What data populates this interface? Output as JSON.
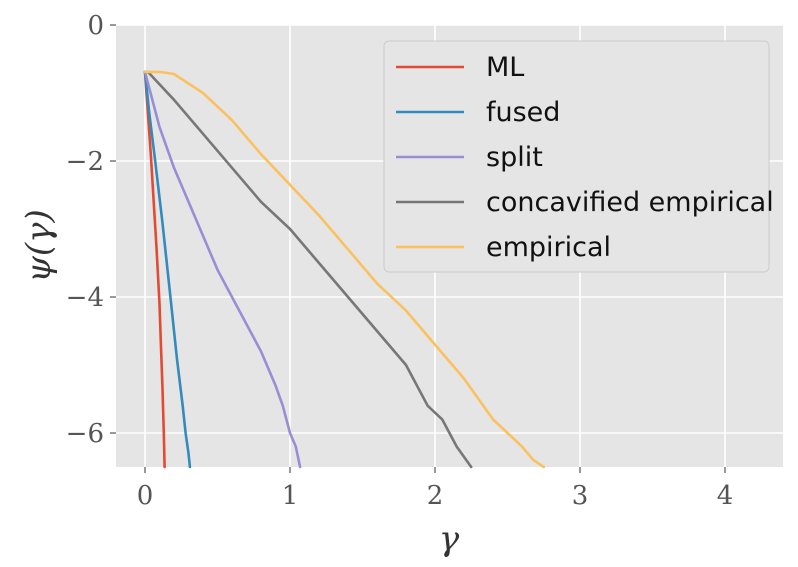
{
  "chart_data": {
    "type": "line",
    "xlabel": "γ",
    "ylabel": "ψ(γ)",
    "xlim": [
      -0.2,
      4.4
    ],
    "ylim": [
      -6.5,
      0
    ],
    "xticks": [
      "0",
      "1",
      "2",
      "3",
      "4"
    ],
    "xtick_values": [
      0,
      1,
      2,
      3,
      4
    ],
    "yticks": [
      "0",
      "−2",
      "−4",
      "−6"
    ],
    "ytick_values": [
      0,
      -2,
      -4,
      -6
    ],
    "grid": true,
    "legend_position": "top-right",
    "series": [
      {
        "name": "ML",
        "color": "#E24A33",
        "points": [
          [
            0,
            -0.69
          ],
          [
            0.02,
            -1.3
          ],
          [
            0.04,
            -1.9
          ],
          [
            0.06,
            -2.6
          ],
          [
            0.08,
            -3.3
          ],
          [
            0.1,
            -4.1
          ],
          [
            0.11,
            -4.7
          ],
          [
            0.12,
            -5.3
          ],
          [
            0.13,
            -6.0
          ],
          [
            0.135,
            -6.5
          ]
        ]
      },
      {
        "name": "fused",
        "color": "#348ABD",
        "points": [
          [
            0,
            -0.69
          ],
          [
            0.03,
            -1.3
          ],
          [
            0.07,
            -2.0
          ],
          [
            0.12,
            -2.9
          ],
          [
            0.17,
            -3.9
          ],
          [
            0.22,
            -4.9
          ],
          [
            0.26,
            -5.6
          ],
          [
            0.28,
            -6.0
          ],
          [
            0.3,
            -6.3
          ],
          [
            0.31,
            -6.5
          ]
        ]
      },
      {
        "name": "split",
        "color": "#988ED5",
        "points": [
          [
            0,
            -0.69
          ],
          [
            0.1,
            -1.5
          ],
          [
            0.2,
            -2.1
          ],
          [
            0.3,
            -2.6
          ],
          [
            0.4,
            -3.1
          ],
          [
            0.5,
            -3.6
          ],
          [
            0.6,
            -4.0
          ],
          [
            0.7,
            -4.4
          ],
          [
            0.8,
            -4.8
          ],
          [
            0.9,
            -5.3
          ],
          [
            0.95,
            -5.6
          ],
          [
            1.0,
            -6.0
          ],
          [
            1.04,
            -6.2
          ],
          [
            1.07,
            -6.5
          ]
        ]
      },
      {
        "name": "concavified empirical",
        "color": "#777777",
        "points": [
          [
            0,
            -0.69
          ],
          [
            0.02,
            -0.69
          ],
          [
            0.2,
            -1.1
          ],
          [
            0.4,
            -1.6
          ],
          [
            0.6,
            -2.1
          ],
          [
            0.8,
            -2.6
          ],
          [
            1.0,
            -3.0
          ],
          [
            1.2,
            -3.5
          ],
          [
            1.4,
            -4.0
          ],
          [
            1.6,
            -4.5
          ],
          [
            1.8,
            -5.0
          ],
          [
            1.95,
            -5.6
          ],
          [
            2.05,
            -5.8
          ],
          [
            2.15,
            -6.2
          ],
          [
            2.25,
            -6.5
          ]
        ]
      },
      {
        "name": "empirical",
        "color": "#FBC15E",
        "points": [
          [
            0,
            -0.69
          ],
          [
            0.1,
            -0.69
          ],
          [
            0.2,
            -0.72
          ],
          [
            0.4,
            -1.0
          ],
          [
            0.6,
            -1.4
          ],
          [
            0.8,
            -1.9
          ],
          [
            1.0,
            -2.35
          ],
          [
            1.2,
            -2.8
          ],
          [
            1.4,
            -3.3
          ],
          [
            1.6,
            -3.8
          ],
          [
            1.8,
            -4.2
          ],
          [
            2.0,
            -4.7
          ],
          [
            2.2,
            -5.2
          ],
          [
            2.4,
            -5.8
          ],
          [
            2.5,
            -6.0
          ],
          [
            2.6,
            -6.2
          ],
          [
            2.68,
            -6.4
          ],
          [
            2.75,
            -6.5
          ]
        ]
      }
    ]
  }
}
